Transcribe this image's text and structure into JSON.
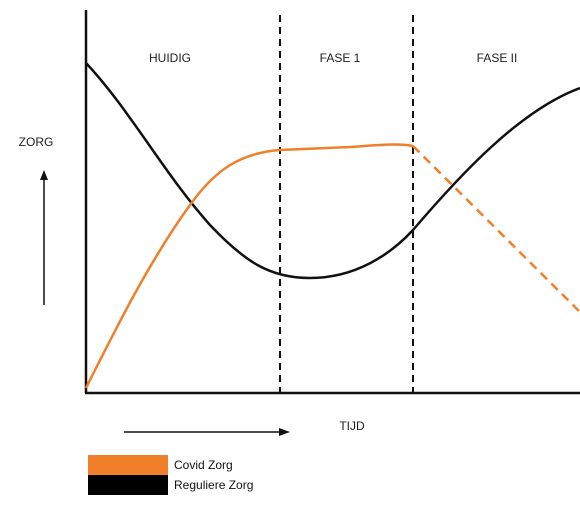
{
  "diagram": {
    "phases": [
      "HUIDIG",
      "FASE 1",
      "FASE II"
    ],
    "y_axis_label": "ZORG",
    "x_axis_label": "TIJD"
  },
  "legend": {
    "items": [
      {
        "label": "Covid Zorg",
        "color": "#f07f2a"
      },
      {
        "label": "Reguliere Zorg",
        "color": "#000000"
      }
    ]
  },
  "colors": {
    "covid": "#f07f2a",
    "regular": "#111111",
    "axis": "#111111"
  }
}
